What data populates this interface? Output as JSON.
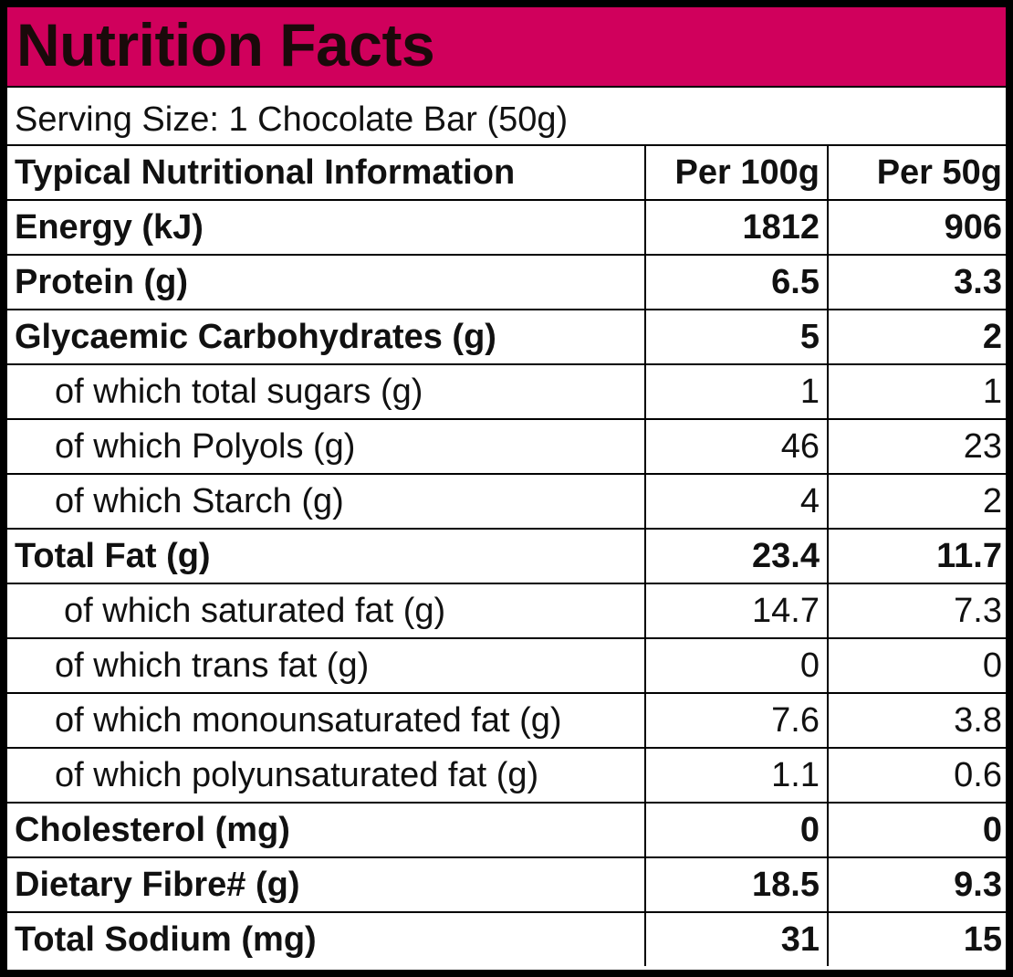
{
  "colors": {
    "title_bar": "#d0005c",
    "border": "#000000",
    "background": "#ffffff"
  },
  "label": {
    "title": "Nutrition Facts",
    "serving_size": "Serving Size: 1 Chocolate Bar (50g)"
  },
  "table": {
    "header": {
      "name": "Typical Nutritional Information",
      "per100": "Per 100g",
      "per50": "Per 50g"
    },
    "rows": [
      {
        "name": "Energy (kJ)",
        "per100": "1812",
        "per50": "906"
      },
      {
        "name": "Protein (g)",
        "per100": "6.5",
        "per50": "3.3"
      },
      {
        "name": "Glycaemic Carbohydrates (g)",
        "per100": "5",
        "per50": "2"
      },
      {
        "name": "of which total sugars (g)",
        "per100": "1",
        "per50": "1"
      },
      {
        "name": "of which Polyols (g)",
        "per100": "46",
        "per50": "23"
      },
      {
        "name": "of which Starch (g)",
        "per100": "4",
        "per50": "2"
      },
      {
        "name": "Total Fat (g)",
        "per100": "23.4",
        "per50": "11.7"
      },
      {
        "name": "of which saturated fat (g)",
        "per100": "14.7",
        "per50": "7.3"
      },
      {
        "name": "of which trans fat (g)",
        "per100": "0",
        "per50": "0"
      },
      {
        "name": "of which monounsaturated fat (g)",
        "per100": "7.6",
        "per50": "3.8"
      },
      {
        "name": "of which polyunsaturated fat (g)",
        "per100": "1.1",
        "per50": "0.6"
      },
      {
        "name": "Cholesterol (mg)",
        "per100": "0",
        "per50": "0"
      },
      {
        "name": "Dietary Fibre# (g)",
        "per100": "18.5",
        "per50": "9.3"
      },
      {
        "name": "Total Sodium (mg)",
        "per100": "31",
        "per50": "15"
      }
    ]
  }
}
